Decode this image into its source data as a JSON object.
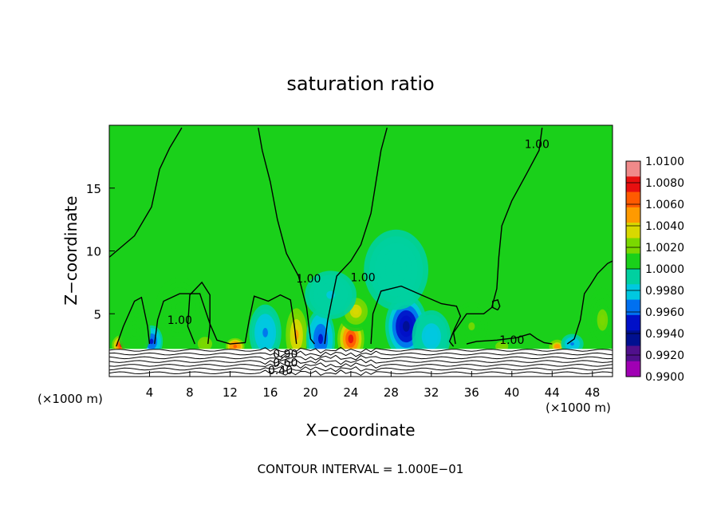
{
  "chart_data": {
    "type": "heatmap",
    "title": "saturation ratio",
    "xlabel": "X−coordinate",
    "ylabel": "Z−coordinate",
    "x_unit_left": "(×1000 m)",
    "x_unit_right": "(×1000 m)",
    "xlim": [
      0,
      50
    ],
    "ylim": [
      0,
      20
    ],
    "x_ticks": [
      4,
      8,
      12,
      16,
      20,
      24,
      28,
      32,
      36,
      40,
      44,
      48
    ],
    "y_ticks": [
      5,
      10,
      15
    ],
    "footer": "CONTOUR INTERVAL = 1.000E−01",
    "colorbar": {
      "labels": [
        "1.0100",
        "1.0080",
        "1.0060",
        "1.0040",
        "1.0020",
        "1.0000",
        "0.9980",
        "0.9960",
        "0.9940",
        "0.9920",
        "0.9900"
      ],
      "colors": [
        "#f08a8a",
        "#e81010",
        "#ff5a00",
        "#ff9a00",
        "#d8d800",
        "#7ad800",
        "#1ad01a",
        "#00d0a0",
        "#00c8e0",
        "#0070f0",
        "#0010c8",
        "#001090",
        "#50108c",
        "#a000b4"
      ]
    },
    "contour_labels": [
      {
        "text": "1.00",
        "x": 42.5,
        "z": 18.2
      },
      {
        "text": "1.00",
        "x": 19.8,
        "z": 7.5
      },
      {
        "text": "1.00",
        "x": 25.2,
        "z": 7.6
      },
      {
        "text": "1.00",
        "x": 7.0,
        "z": 4.2
      },
      {
        "text": "1.00",
        "x": 40.0,
        "z": 2.6
      },
      {
        "text": "0.90",
        "x": 17.5,
        "z": 1.5
      },
      {
        "text": "0.60",
        "x": 17.5,
        "z": 0.8
      },
      {
        "text": "0.40",
        "x": 17.0,
        "z": 0.2
      }
    ],
    "base_field": 1.0,
    "anomalies": [
      {
        "x": 1.2,
        "z": 2.5,
        "value": 1.0085,
        "sx": 0.7,
        "sz": 0.6
      },
      {
        "x": 4.2,
        "z": 2.8,
        "value": 0.9945,
        "sx": 0.7,
        "sz": 0.8
      },
      {
        "x": 9.5,
        "z": 2.6,
        "value": 1.0025,
        "sx": 0.9,
        "sz": 0.7
      },
      {
        "x": 12.5,
        "z": 2.4,
        "value": 1.0075,
        "sx": 0.7,
        "sz": 0.5
      },
      {
        "x": 15.5,
        "z": 3.5,
        "value": 0.9965,
        "sx": 1.0,
        "sz": 1.4
      },
      {
        "x": 18.6,
        "z": 3.3,
        "value": 1.005,
        "sx": 0.8,
        "sz": 1.6
      },
      {
        "x": 21.0,
        "z": 3.0,
        "value": 0.9945,
        "sx": 0.9,
        "sz": 1.5
      },
      {
        "x": 24.0,
        "z": 3.0,
        "value": 1.0095,
        "sx": 1.0,
        "sz": 1.3
      },
      {
        "x": 24.5,
        "z": 5.2,
        "value": 1.004,
        "sx": 1.1,
        "sz": 1.0
      },
      {
        "x": 29.5,
        "z": 4.0,
        "value": 0.9925,
        "sx": 1.3,
        "sz": 1.6
      },
      {
        "x": 32.0,
        "z": 3.2,
        "value": 0.9975,
        "sx": 1.2,
        "sz": 1.3
      },
      {
        "x": 22.0,
        "z": 6.5,
        "value": 0.9982,
        "sx": 1.6,
        "sz": 1.2
      },
      {
        "x": 28.5,
        "z": 8.5,
        "value": 0.9988,
        "sx": 2.0,
        "sz": 2.0
      },
      {
        "x": 36.0,
        "z": 4.0,
        "value": 1.0018,
        "sx": 1.2,
        "sz": 1.2
      },
      {
        "x": 39.0,
        "z": 2.4,
        "value": 1.003,
        "sx": 0.8,
        "sz": 0.5
      },
      {
        "x": 44.5,
        "z": 2.4,
        "value": 1.006,
        "sx": 0.6,
        "sz": 0.4
      },
      {
        "x": 46.0,
        "z": 2.6,
        "value": 0.9965,
        "sx": 0.7,
        "sz": 0.5
      },
      {
        "x": 49.0,
        "z": 4.5,
        "value": 1.0022,
        "sx": 1.0,
        "sz": 1.6
      },
      {
        "x": 7.0,
        "z": 5.5,
        "value": 1.0012,
        "sx": 1.5,
        "sz": 1.5
      },
      {
        "x": 2.5,
        "z": 3.5,
        "value": 1.0015,
        "sx": 1.0,
        "sz": 1.2
      }
    ],
    "contour_lines": [
      [
        [
          0,
          9.5
        ],
        [
          2.5,
          11.2
        ],
        [
          4.2,
          13.5
        ],
        [
          5.0,
          16.5
        ],
        [
          6.0,
          18.2
        ],
        [
          7.2,
          19.8
        ]
      ],
      [
        [
          14.8,
          19.8
        ],
        [
          15.2,
          18.0
        ],
        [
          16.0,
          15.5
        ],
        [
          16.7,
          12.5
        ],
        [
          17.6,
          9.8
        ],
        [
          18.8,
          8.0
        ],
        [
          19.6,
          5.5
        ],
        [
          20.0,
          3.0
        ],
        [
          20.4,
          2.6
        ]
      ],
      [
        [
          27.6,
          19.8
        ],
        [
          27.0,
          18.0
        ],
        [
          26.5,
          15.5
        ],
        [
          26.0,
          13.0
        ],
        [
          25.0,
          10.5
        ],
        [
          24.0,
          9.2
        ],
        [
          22.6,
          8.0
        ],
        [
          21.7,
          4.5
        ],
        [
          21.4,
          2.6
        ]
      ],
      [
        [
          43.0,
          19.8
        ],
        [
          42.7,
          18.0
        ],
        [
          41.5,
          16.2
        ],
        [
          40.0,
          14.0
        ],
        [
          39.0,
          12.0
        ],
        [
          38.7,
          9.5
        ],
        [
          38.5,
          7.0
        ],
        [
          38.0,
          5.5
        ],
        [
          37.2,
          5.0
        ],
        [
          35.5,
          5.0
        ],
        [
          34.2,
          3.5
        ],
        [
          34.4,
          2.6
        ]
      ],
      [
        [
          0.7,
          2.4
        ],
        [
          1.4,
          4.0
        ],
        [
          2.5,
          6.0
        ],
        [
          3.2,
          6.3
        ],
        [
          3.8,
          4.0
        ],
        [
          4.0,
          2.6
        ]
      ],
      [
        [
          4.5,
          2.6
        ],
        [
          4.8,
          4.5
        ],
        [
          5.4,
          6.0
        ],
        [
          7.0,
          6.6
        ],
        [
          9.0,
          6.6
        ],
        [
          10.0,
          4.2
        ],
        [
          10.7,
          2.9
        ],
        [
          12.0,
          2.6
        ],
        [
          13.5,
          2.7
        ],
        [
          13.9,
          4.5
        ],
        [
          14.4,
          6.4
        ],
        [
          15.8,
          6.0
        ],
        [
          17.0,
          6.5
        ],
        [
          18.0,
          6.1
        ],
        [
          18.4,
          4.0
        ],
        [
          18.6,
          2.6
        ]
      ],
      [
        [
          8.5,
          2.6
        ],
        [
          7.8,
          4.0
        ],
        [
          8.0,
          6.5
        ],
        [
          9.2,
          7.5
        ],
        [
          10.0,
          6.5
        ],
        [
          10.0,
          4.0
        ],
        [
          9.8,
          2.6
        ]
      ],
      [
        [
          26.0,
          2.6
        ],
        [
          26.2,
          5.0
        ],
        [
          27.0,
          6.8
        ],
        [
          29.0,
          7.2
        ],
        [
          31.0,
          6.5
        ],
        [
          33.0,
          5.8
        ],
        [
          34.5,
          5.6
        ],
        [
          34.9,
          4.8
        ],
        [
          34.3,
          3.8
        ],
        [
          33.8,
          2.8
        ],
        [
          34.2,
          2.4
        ]
      ],
      [
        [
          35.5,
          2.6
        ],
        [
          36.5,
          2.8
        ],
        [
          38.5,
          2.9
        ],
        [
          40.5,
          3.1
        ],
        [
          41.8,
          3.4
        ],
        [
          42.5,
          3.0
        ],
        [
          43.2,
          2.7
        ],
        [
          44.0,
          2.6
        ]
      ],
      [
        [
          45.5,
          2.6
        ],
        [
          46.2,
          3.0
        ],
        [
          46.8,
          4.5
        ],
        [
          47.2,
          6.6
        ],
        [
          47.8,
          7.3
        ],
        [
          48.5,
          8.2
        ],
        [
          49.5,
          9.0
        ],
        [
          50,
          9.2
        ]
      ],
      [
        [
          38.6,
          5.3
        ],
        [
          38.1,
          5.5
        ],
        [
          38.1,
          6.0
        ],
        [
          38.6,
          6.1
        ],
        [
          38.8,
          5.6
        ],
        [
          38.6,
          5.3
        ]
      ]
    ],
    "ground_lines": [
      2.1,
      1.8,
      1.5,
      1.2,
      0.9,
      0.6,
      0.3
    ]
  }
}
